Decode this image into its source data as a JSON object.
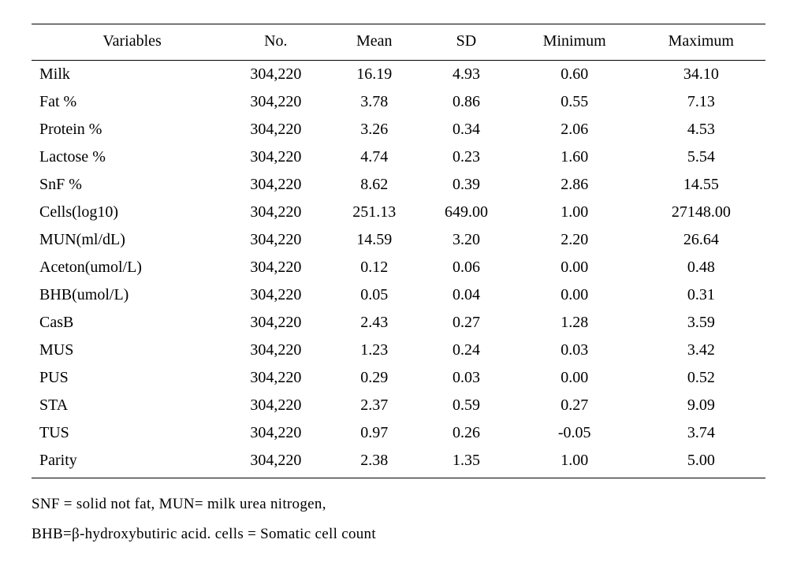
{
  "table": {
    "columns": [
      "Variables",
      "No.",
      "Mean",
      "SD",
      "Minimum",
      "Maximum"
    ],
    "col_align": [
      "left",
      "center",
      "center",
      "center",
      "center",
      "center"
    ],
    "rows": [
      [
        "Milk",
        "304,220",
        "16.19",
        "4.93",
        "0.60",
        "34.10"
      ],
      [
        "Fat %",
        "304,220",
        "3.78",
        "0.86",
        "0.55",
        "7.13"
      ],
      [
        "Protein %",
        "304,220",
        "3.26",
        "0.34",
        "2.06",
        "4.53"
      ],
      [
        "Lactose %",
        "304,220",
        "4.74",
        "0.23",
        "1.60",
        "5.54"
      ],
      [
        "SnF %",
        "304,220",
        "8.62",
        "0.39",
        "2.86",
        "14.55"
      ],
      [
        "Cells(log10)",
        "304,220",
        "251.13",
        "649.00",
        "1.00",
        "27148.00"
      ],
      [
        "MUN(ml/dL)",
        "304,220",
        "14.59",
        "3.20",
        "2.20",
        "26.64"
      ],
      [
        "Aceton(umol/L)",
        "304,220",
        "0.12",
        "0.06",
        "0.00",
        "0.48"
      ],
      [
        "BHB(umol/L)",
        "304,220",
        "0.05",
        "0.04",
        "0.00",
        "0.31"
      ],
      [
        "CasB",
        "304,220",
        "2.43",
        "0.27",
        "1.28",
        "3.59"
      ],
      [
        "MUS",
        "304,220",
        "1.23",
        "0.24",
        "0.03",
        "3.42"
      ],
      [
        "PUS",
        "304,220",
        "0.29",
        "0.03",
        "0.00",
        "0.52"
      ],
      [
        "STA",
        "304,220",
        "2.37",
        "0.59",
        "0.27",
        "9.09"
      ],
      [
        "TUS",
        "304,220",
        "0.97",
        "0.26",
        "-0.05",
        "3.74"
      ],
      [
        "Parity",
        "304,220",
        "2.38",
        "1.35",
        "1.00",
        "5.00"
      ]
    ],
    "border_color": "#000000",
    "background_color": "#ffffff",
    "font_family": "Times New Roman",
    "header_fontsize": 20,
    "body_fontsize": 20
  },
  "footnotes": {
    "line1": "SNF  = solid not fat, MUN= milk urea nitrogen,",
    "line2": "BHB=β-hydroxybutiric acid. cells = Somatic cell count",
    "fontsize": 19
  }
}
